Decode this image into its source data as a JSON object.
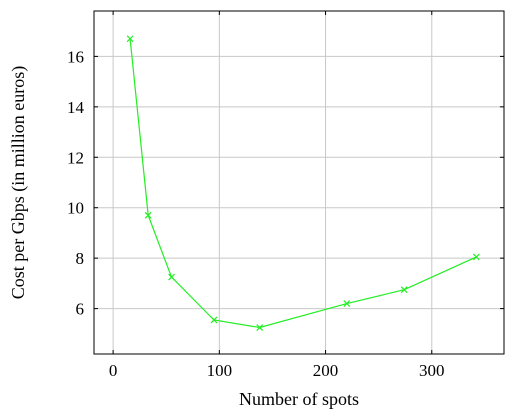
{
  "chart_data": {
    "type": "line",
    "xlabel": "Number of spots",
    "ylabel": "Cost per Gbps (in million euros)",
    "xlim": [
      -18,
      368
    ],
    "ylim": [
      4.2,
      17.8
    ],
    "grid": true,
    "xticks": [
      0,
      100,
      200,
      300
    ],
    "yticks": [
      6,
      8,
      10,
      12,
      14,
      16
    ],
    "series": [
      {
        "color": "#22ee22",
        "marker": "x",
        "x": [
          16,
          33,
          55,
          95,
          138,
          220,
          274,
          342
        ],
        "y": [
          16.7,
          9.7,
          7.25,
          5.55,
          5.25,
          6.2,
          6.75,
          8.05
        ]
      }
    ]
  }
}
